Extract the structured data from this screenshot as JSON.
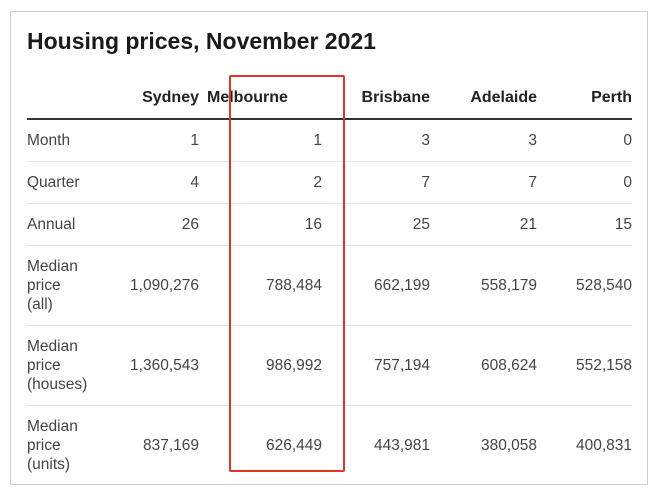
{
  "title": "Housing prices, November 2021",
  "columns": [
    "",
    "Sydney",
    "Melbourne",
    "Brisbane",
    "Adelaide",
    "Perth"
  ],
  "rows": [
    {
      "label": "Month",
      "values": [
        "1",
        "1",
        "3",
        "3",
        "0"
      ]
    },
    {
      "label": "Quarter",
      "values": [
        "4",
        "2",
        "7",
        "7",
        "0"
      ]
    },
    {
      "label": "Annual",
      "values": [
        "26",
        "16",
        "25",
        "21",
        "15"
      ]
    },
    {
      "label_lines": [
        "Median",
        "price",
        "(all)"
      ],
      "values": [
        "1,090,276",
        "788,484",
        "662,199",
        "558,179",
        "528,540"
      ]
    },
    {
      "label_lines": [
        "Median",
        "price",
        "(houses)"
      ],
      "values": [
        "1,360,543",
        "986,992",
        "757,194",
        "608,624",
        "552,158"
      ]
    },
    {
      "label_lines": [
        "Median",
        "price",
        "(units)"
      ],
      "values": [
        "837,169",
        "626,449",
        "443,981",
        "380,058",
        "400,831"
      ]
    }
  ],
  "highlight": {
    "column": "Melbourne",
    "color": "#e0342a"
  }
}
